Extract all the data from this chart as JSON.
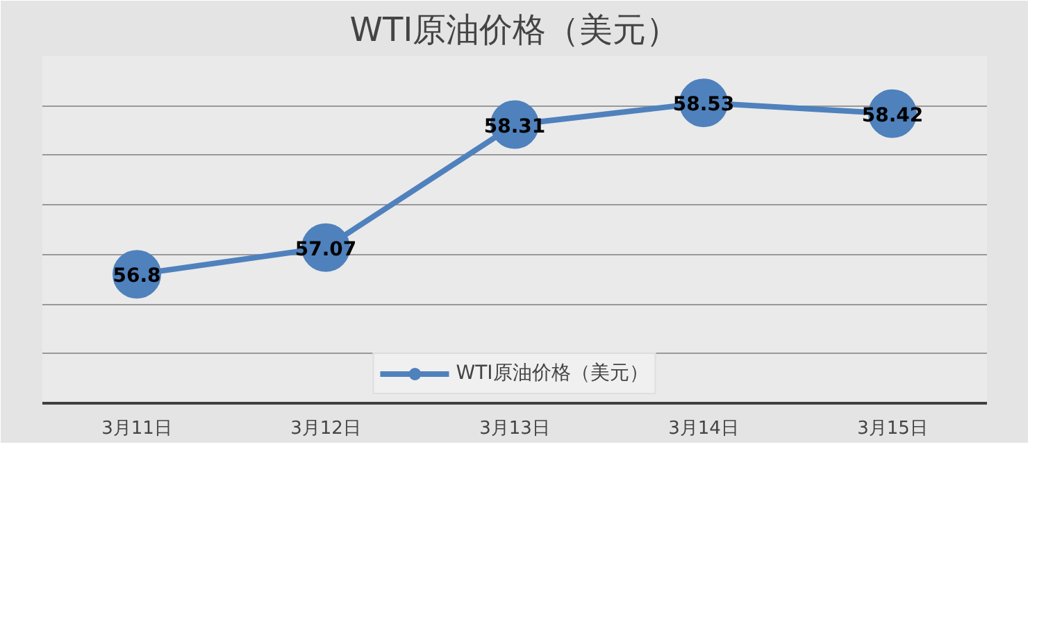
{
  "chart_data": {
    "type": "line",
    "title": "WTI原油价格（美元）",
    "categories": [
      "3月11日",
      "3月12日",
      "3月13日",
      "3月14日",
      "3月15日"
    ],
    "series": [
      {
        "name": "WTI原油价格（美元）",
        "color": "#4f81bd",
        "values": [
          56.8,
          57.07,
          58.31,
          58.53,
          58.42
        ]
      }
    ],
    "ylim": [
      55.5,
      59
    ],
    "yticks": [
      {
        "value": 55.5,
        "label": null
      },
      {
        "value": 56,
        "label": null
      },
      {
        "value": 56.5,
        "label": null
      },
      {
        "value": 57,
        "label": null
      },
      {
        "value": 57.5,
        "label": null
      },
      {
        "value": 58,
        "label": null
      },
      {
        "value": 58.5,
        "label": null
      },
      {
        "value": 59,
        "label": null
      }
    ],
    "tick_labels": "x",
    "grid": "y",
    "legend": "bottom",
    "marker": "circle",
    "line_style": "solid",
    "data_labels": true
  }
}
